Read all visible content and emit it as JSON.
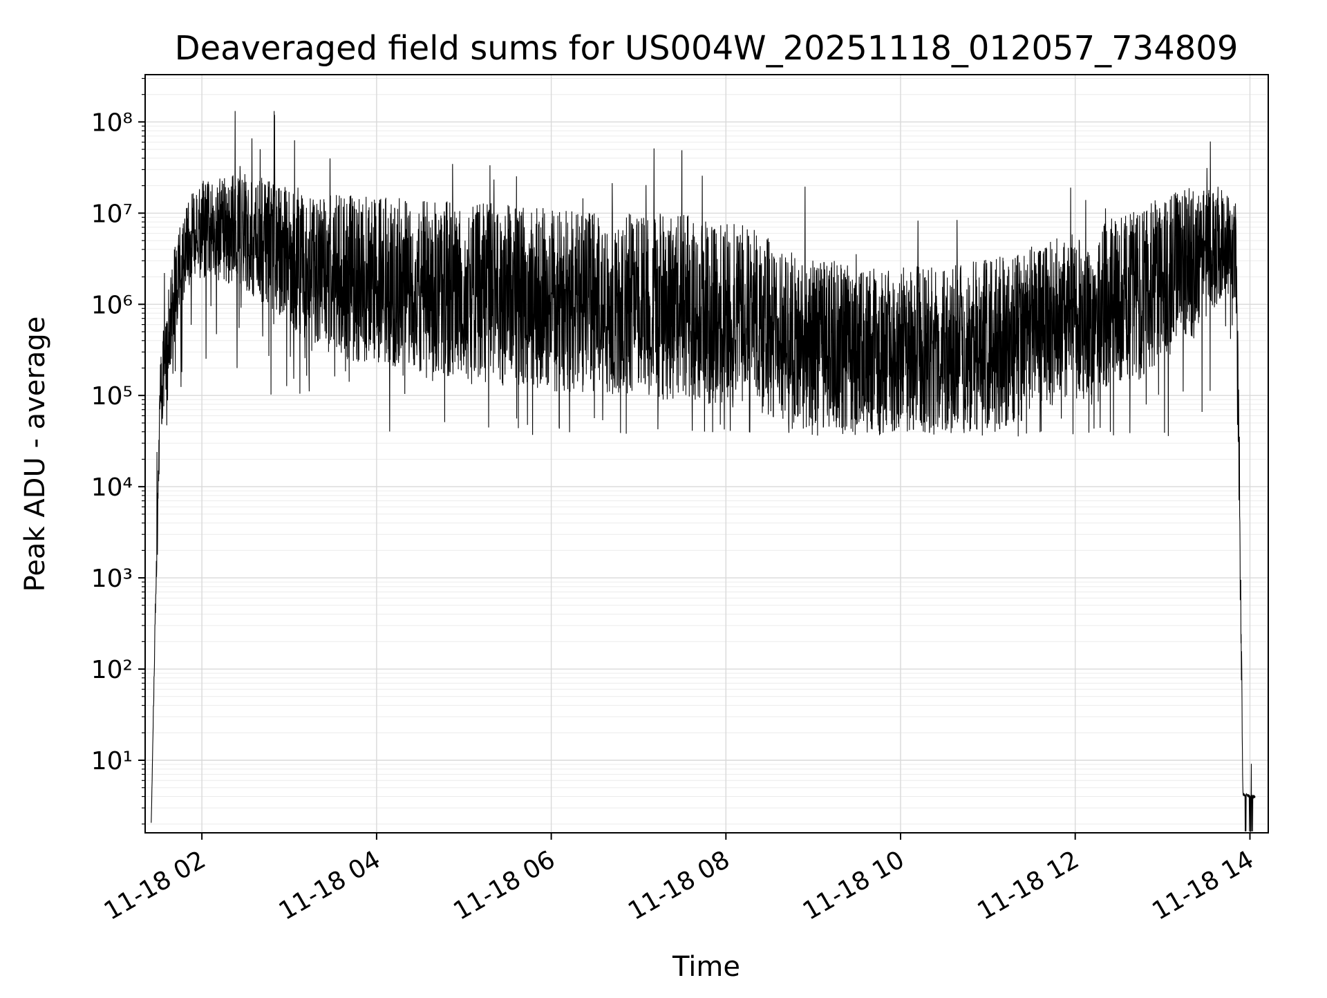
{
  "chart_data": {
    "type": "line",
    "title": "Deaveraged field sums for US004W_20251118_012057_734809",
    "xlabel": "Time",
    "ylabel": "Peak ADU - average",
    "yscale": "log",
    "ylim": [
      1.6,
      330000000
    ],
    "xlim_hours": [
      1.35,
      14.21
    ],
    "x_ticks": {
      "values": [
        2,
        4,
        6,
        8,
        10,
        12,
        14
      ],
      "labels": [
        "11-18 02",
        "11-18 04",
        "11-18 06",
        "11-18 08",
        "11-18 10",
        "11-18 12",
        "11-18 14"
      ]
    },
    "y_ticks": {
      "values": [
        10,
        100,
        1000,
        10000,
        100000,
        1000000,
        10000000,
        100000000
      ],
      "labels": [
        "10¹",
        "10²",
        "10³",
        "10⁴",
        "10⁵",
        "10⁶",
        "10⁷",
        "10⁸"
      ]
    },
    "grid": {
      "major": true,
      "minor": true
    },
    "legend": null,
    "style": {
      "line_color": "#000000",
      "background": "#ffffff",
      "major_grid_color": "#d9d9d9",
      "minor_grid_color": "#ebebeb",
      "axis_color": "#000000"
    },
    "series": {
      "name": "peak-adu-minus-average",
      "color": "#000000",
      "line_width": 1.1,
      "points_n": 5200,
      "t_start": 1.42,
      "t_end": 14.06,
      "seed": 734809,
      "envelope_t_medianlog10_halfamplog10": [
        [
          1.42,
          0.3,
          0.02
        ],
        [
          1.46,
          2.3,
          0.15
        ],
        [
          1.52,
          4.9,
          0.45
        ],
        [
          1.62,
          5.8,
          0.55
        ],
        [
          1.8,
          6.6,
          0.5
        ],
        [
          2.0,
          6.85,
          0.55
        ],
        [
          2.5,
          6.8,
          0.65
        ],
        [
          3.0,
          6.5,
          0.8
        ],
        [
          3.6,
          6.3,
          0.9
        ],
        [
          4.5,
          6.2,
          0.95
        ],
        [
          5.5,
          6.1,
          1.0
        ],
        [
          6.5,
          6.0,
          1.0
        ],
        [
          7.5,
          5.95,
          1.05
        ],
        [
          8.3,
          5.85,
          1.0
        ],
        [
          8.8,
          5.6,
          0.95
        ],
        [
          9.6,
          5.5,
          0.92
        ],
        [
          10.4,
          5.5,
          0.92
        ],
        [
          11.2,
          5.6,
          0.95
        ],
        [
          12.0,
          5.85,
          0.95
        ],
        [
          12.7,
          6.1,
          0.95
        ],
        [
          13.3,
          6.45,
          0.85
        ],
        [
          13.7,
          6.7,
          0.6
        ],
        [
          13.84,
          6.6,
          0.55
        ],
        [
          13.88,
          4.0,
          0.8
        ],
        [
          13.92,
          0.62,
          0.02
        ],
        [
          14.06,
          0.6,
          0.02
        ]
      ],
      "spike_prob": 0.015,
      "spike_log10": 0.8,
      "dip_prob": 0.05,
      "dip_log10": 0.8,
      "max_log10": 8.12,
      "main_floor_log10": 4.55,
      "main_floor_t_range": [
        1.9,
        13.85
      ]
    }
  }
}
